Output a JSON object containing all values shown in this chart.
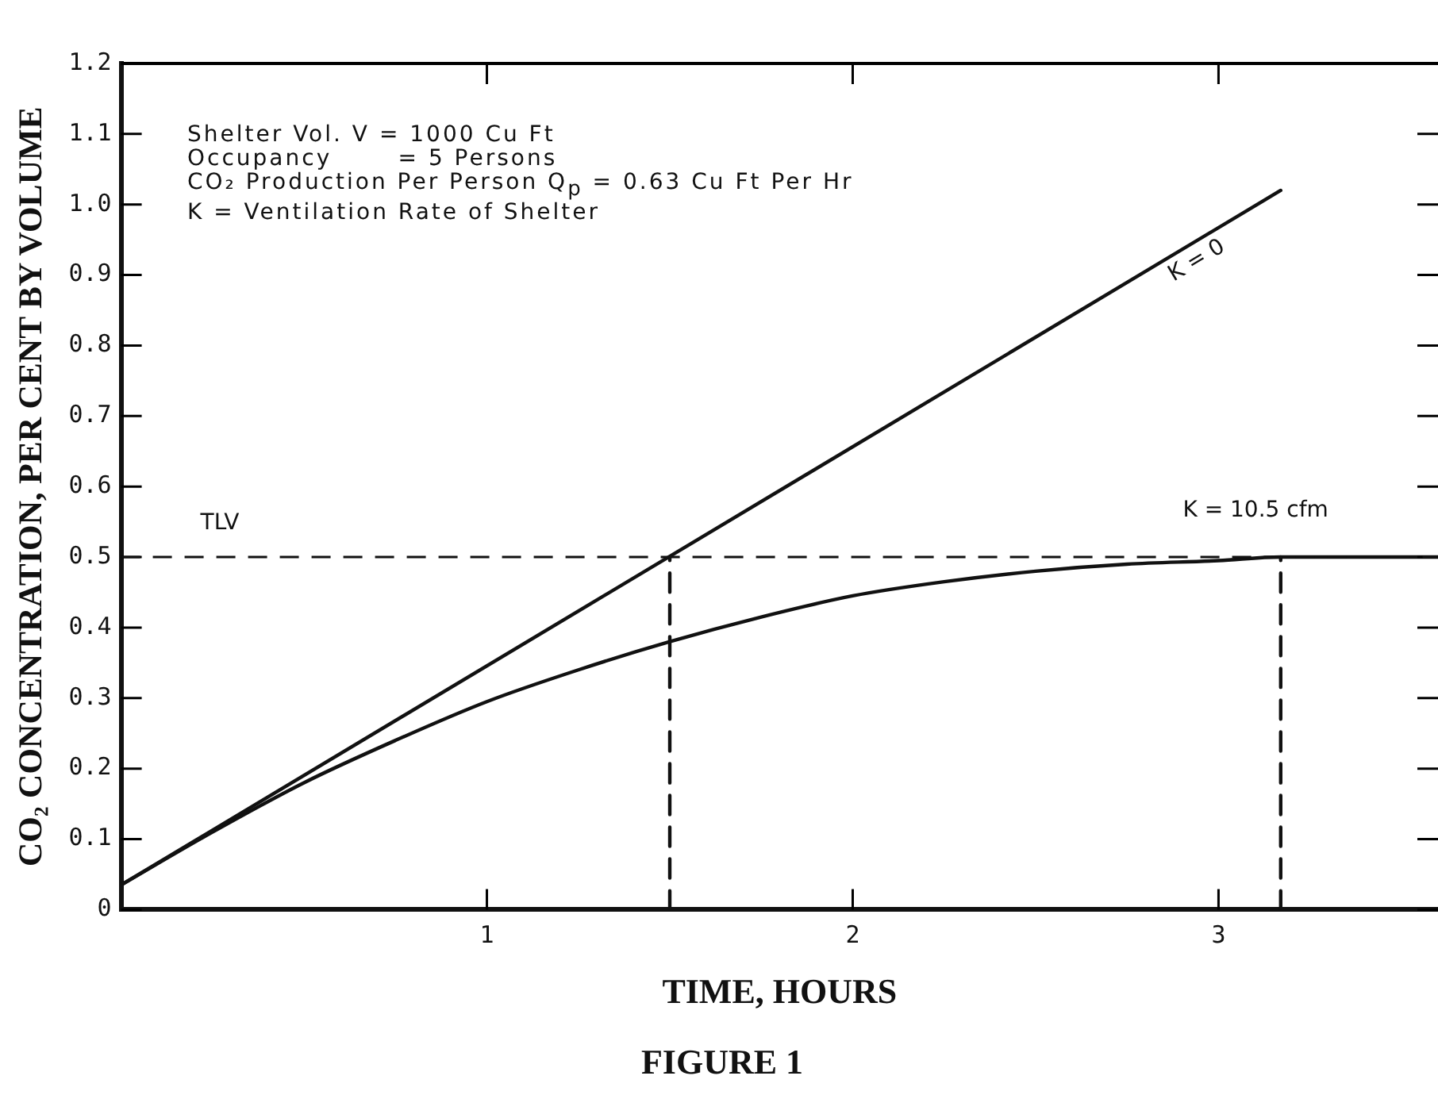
{
  "chart_data": {
    "type": "line",
    "title": "FIGURE 1",
    "xlabel": "TIME, HOURS",
    "ylabel": "CO₂ CONCENTRATION, PER CENT BY VOLUME",
    "xlim": [
      0,
      3.6
    ],
    "xticks": [
      1,
      2,
      3
    ],
    "ylim": [
      0,
      1.2
    ],
    "yticks": [
      0,
      0.1,
      0.2,
      0.3,
      0.4,
      0.5,
      0.6,
      0.7,
      0.8,
      0.9,
      {
        "value": 1,
        "label": "1.0"
      },
      1.1,
      1.2
    ],
    "grid": false,
    "legend": false,
    "marker": "none",
    "series": [
      {
        "name": "K = 0",
        "color": "#111111",
        "line_style": "solid",
        "x": [
          0,
          3.17
        ],
        "values": [
          0.035,
          1.02
        ]
      },
      {
        "name": "K = 10.5 cfm",
        "color": "#111111",
        "line_style": "solid",
        "x": [
          0,
          0.25,
          0.5,
          0.75,
          1,
          1.25,
          1.5,
          1.75,
          2,
          2.25,
          2.5,
          2.75,
          3,
          3.17,
          3.6
        ],
        "values": [
          0.035,
          0.11,
          0.18,
          0.24,
          0.295,
          0.34,
          0.38,
          0.415,
          0.445,
          0.465,
          0.48,
          0.49,
          0.495,
          0.5,
          0.5
        ]
      },
      {
        "color": "#111111",
        "line_style": "dashed",
        "x": [
          1.5,
          1.5
        ],
        "values": [
          0,
          0.5
        ]
      },
      {
        "color": "#111111",
        "line_style": "dashed",
        "x": [
          3.17,
          3.17
        ],
        "values": [
          0,
          0.5
        ]
      }
    ],
    "ref_lines": [
      {
        "axis": "y",
        "value": 0.5,
        "label": "TLV",
        "color": "#111111",
        "line_style": "dashed"
      }
    ],
    "annotations": [
      "Shelter Vol. V = 1000 Cu Ft",
      "Occupancy       = 5 Persons",
      "CO₂ Production Per Person Q$_{p}$ = 0.63 Cu Ft Per Hr",
      "K = Ventilation Rate of Shelter"
    ]
  }
}
